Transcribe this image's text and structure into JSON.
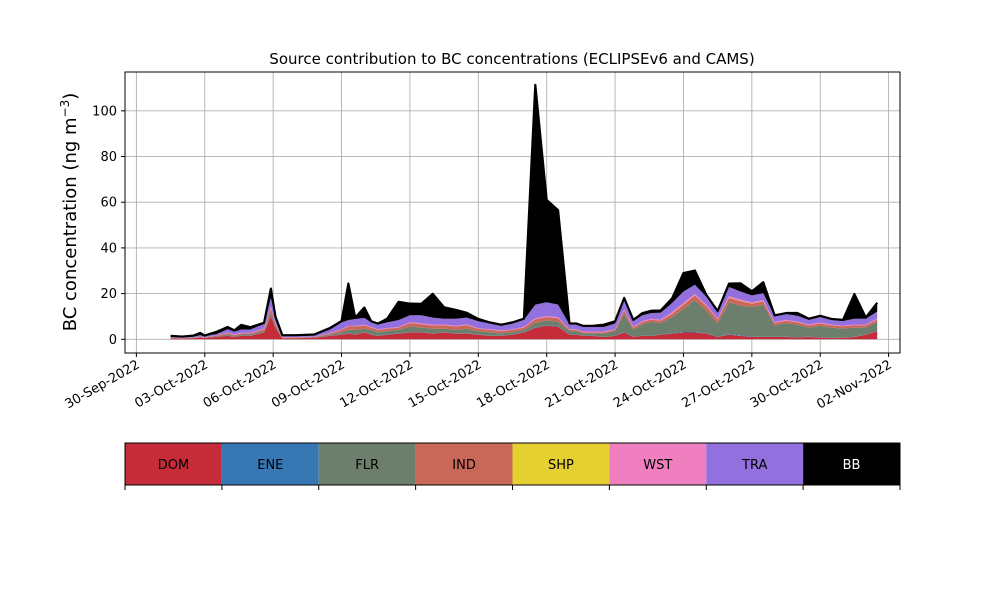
{
  "chart_data": {
    "type": "area",
    "stacked": true,
    "title": "Source contribution to BC concentrations (ECLIPSEv6 and CAMS)",
    "xlabel": "",
    "ylabel": "BC concentration (ng m",
    "ylabel_superscript": "−3",
    "ylabel_suffix": ")",
    "grid": true,
    "xlim_days": [
      -0.5,
      33.5
    ],
    "ylim": [
      -6,
      117
    ],
    "yticks": [
      0,
      20,
      40,
      60,
      80,
      100
    ],
    "xticks": [
      {
        "day": 0,
        "label": "30-Sep-2022"
      },
      {
        "day": 3,
        "label": "03-Oct-2022"
      },
      {
        "day": 6,
        "label": "06-Oct-2022"
      },
      {
        "day": 9,
        "label": "09-Oct-2022"
      },
      {
        "day": 12,
        "label": "12-Oct-2022"
      },
      {
        "day": 15,
        "label": "15-Oct-2022"
      },
      {
        "day": 18,
        "label": "18-Oct-2022"
      },
      {
        "day": 21,
        "label": "21-Oct-2022"
      },
      {
        "day": 24,
        "label": "24-Oct-2022"
      },
      {
        "day": 27,
        "label": "27-Oct-2022"
      },
      {
        "day": 30,
        "label": "30-Oct-2022"
      },
      {
        "day": 33,
        "label": "02-Nov-2022"
      }
    ],
    "x_days": [
      1.5,
      2.0,
      2.5,
      2.8,
      3.0,
      3.2,
      3.5,
      4.0,
      4.3,
      4.6,
      5.0,
      5.6,
      5.9,
      6.1,
      6.4,
      7.0,
      7.8,
      8.5,
      9.0,
      9.3,
      9.6,
      10.0,
      10.3,
      10.6,
      11.0,
      11.5,
      12.0,
      12.5,
      13.0,
      13.5,
      14.0,
      14.5,
      15.0,
      15.5,
      16.0,
      16.5,
      17.0,
      17.5,
      18.0,
      18.5,
      19.0,
      19.3,
      19.6,
      20.0,
      20.5,
      21.0,
      21.4,
      21.8,
      22.2,
      22.6,
      23.0,
      23.5,
      24.0,
      24.5,
      25.0,
      25.5,
      26.0,
      26.5,
      27.0,
      27.5,
      28.0,
      28.5,
      29.0,
      29.5,
      30.0,
      30.5,
      31.0,
      31.5,
      32.0,
      32.5
    ],
    "series": [
      {
        "name": "DOM",
        "color": "#c62b3a",
        "values": [
          0.4,
          0.3,
          0.5,
          0.8,
          0.6,
          0.8,
          1.0,
          1.5,
          1.0,
          1.5,
          1.5,
          3.0,
          10.0,
          5.0,
          0.5,
          0.5,
          0.6,
          1.5,
          2.0,
          2.5,
          2.0,
          3.0,
          2.0,
          1.5,
          2.0,
          2.5,
          3.0,
          3.0,
          2.5,
          3.0,
          2.5,
          2.5,
          2.0,
          1.5,
          1.5,
          2.0,
          3.0,
          5.0,
          6.0,
          5.5,
          2.0,
          2.0,
          1.5,
          1.5,
          1.0,
          1.5,
          3.0,
          1.0,
          1.5,
          1.5,
          2.0,
          2.5,
          3.0,
          3.0,
          2.5,
          1.0,
          2.0,
          1.5,
          1.0,
          1.0,
          1.0,
          1.0,
          0.8,
          1.0,
          0.8,
          0.5,
          0.6,
          1.0,
          2.0,
          3.5
        ]
      },
      {
        "name": "ENE",
        "color": "#3677b4",
        "values": [
          0,
          0,
          0,
          0,
          0,
          0,
          0,
          0.1,
          0.1,
          0.1,
          0.1,
          0.1,
          0.1,
          0.1,
          0,
          0,
          0,
          0.1,
          0.1,
          0.1,
          0.1,
          0.1,
          0.1,
          0.1,
          0.1,
          0.1,
          0.1,
          0.1,
          0.1,
          0.1,
          0.1,
          0.1,
          0.1,
          0.1,
          0.1,
          0.1,
          0.1,
          0.2,
          0.2,
          0.2,
          0.1,
          0.1,
          0.1,
          0.1,
          0.1,
          0.1,
          0.1,
          0.1,
          0.1,
          0.1,
          0.1,
          0.2,
          0.2,
          0.2,
          0.1,
          0.1,
          0.2,
          0.2,
          0.1,
          0.1,
          0.1,
          0.1,
          0.1,
          0.1,
          0.1,
          0.1,
          0.1,
          0.1,
          0.1,
          0.1
        ]
      },
      {
        "name": "FLR",
        "color": "#6c7f6d",
        "values": [
          0.1,
          0.1,
          0.1,
          0.2,
          0.1,
          0.2,
          0.3,
          0.5,
          0.4,
          0.5,
          0.5,
          0.6,
          1.5,
          0.8,
          0.2,
          0.2,
          0.2,
          0.5,
          1.0,
          1.5,
          2.0,
          1.5,
          2.0,
          1.5,
          1.5,
          1.5,
          2.5,
          2.0,
          2.0,
          1.5,
          1.5,
          2.0,
          1.5,
          1.5,
          1.0,
          1.0,
          1.0,
          2.0,
          2.0,
          2.0,
          1.5,
          1.5,
          1.0,
          1.0,
          1.5,
          2.0,
          8.0,
          3.0,
          5.0,
          6.0,
          5.0,
          7.0,
          10.0,
          14.0,
          10.0,
          6.0,
          14.0,
          13.0,
          13.0,
          14.0,
          5.0,
          6.0,
          5.5,
          4.0,
          5.0,
          4.5,
          4.0,
          4.0,
          3.0,
          4.0
        ]
      },
      {
        "name": "IND",
        "color": "#c96758",
        "values": [
          0.1,
          0.1,
          0.1,
          0.2,
          0.1,
          0.2,
          0.3,
          0.6,
          0.4,
          0.5,
          0.5,
          0.7,
          2.0,
          0.8,
          0.2,
          0.2,
          0.2,
          0.5,
          1.0,
          1.5,
          1.5,
          1.5,
          1.0,
          1.0,
          1.0,
          1.0,
          1.5,
          1.5,
          1.5,
          1.5,
          1.5,
          1.5,
          1.0,
          1.0,
          1.0,
          1.0,
          1.0,
          1.5,
          1.5,
          1.5,
          0.5,
          0.5,
          0.5,
          0.5,
          0.5,
          0.5,
          1.5,
          1.0,
          1.0,
          1.0,
          1.0,
          1.5,
          2.0,
          2.0,
          2.0,
          1.5,
          2.0,
          2.0,
          1.5,
          1.5,
          1.0,
          1.0,
          1.0,
          1.0,
          1.0,
          1.0,
          1.0,
          1.0,
          1.0,
          1.0
        ]
      },
      {
        "name": "SHP",
        "color": "#e5d031",
        "values": [
          0,
          0,
          0,
          0,
          0,
          0,
          0,
          0,
          0,
          0,
          0,
          0,
          0,
          0,
          0,
          0,
          0,
          0,
          0,
          0,
          0,
          0,
          0,
          0,
          0,
          0,
          0,
          0,
          0,
          0,
          0,
          0,
          0,
          0,
          0,
          0,
          0,
          0,
          0,
          0,
          0,
          0,
          0,
          0,
          0,
          0,
          0,
          0,
          0,
          0,
          0,
          0.1,
          0.1,
          0.1,
          0,
          0,
          0.1,
          0.1,
          0.1,
          0.1,
          0,
          0,
          0,
          0,
          0,
          0,
          0,
          0,
          0,
          0
        ]
      },
      {
        "name": "WST",
        "color": "#f07fbf",
        "values": [
          0.1,
          0.1,
          0.1,
          0.1,
          0.1,
          0.1,
          0.1,
          0.2,
          0.2,
          0.2,
          0.2,
          0.3,
          0.6,
          0.3,
          0.1,
          0.1,
          0.1,
          0.2,
          0.3,
          0.3,
          0.3,
          0.3,
          0.3,
          0.3,
          0.3,
          0.3,
          0.4,
          0.4,
          0.4,
          0.4,
          0.4,
          0.4,
          0.3,
          0.3,
          0.3,
          0.3,
          0.4,
          0.5,
          0.5,
          0.5,
          0.3,
          0.3,
          0.3,
          0.3,
          0.3,
          0.3,
          0.5,
          0.4,
          0.4,
          0.4,
          0.5,
          0.6,
          0.6,
          0.6,
          0.6,
          0.5,
          0.6,
          0.6,
          0.5,
          0.5,
          0.4,
          0.4,
          0.4,
          0.4,
          0.4,
          0.3,
          0.3,
          0.4,
          0.4,
          0.5
        ]
      },
      {
        "name": "TRA",
        "color": "#9270dd",
        "values": [
          0.3,
          0.3,
          0.3,
          0.5,
          0.4,
          0.5,
          0.5,
          1.5,
          1.2,
          1.5,
          1.5,
          2.0,
          4.0,
          2.5,
          0.5,
          0.5,
          0.5,
          1.5,
          3.0,
          2.5,
          3.0,
          3.0,
          2.0,
          2.0,
          2.5,
          3.0,
          3.0,
          3.5,
          3.0,
          2.5,
          3.0,
          3.0,
          3.0,
          2.5,
          2.0,
          2.5,
          3.0,
          6.0,
          6.0,
          5.5,
          2.0,
          2.0,
          2.0,
          2.0,
          2.0,
          2.5,
          4.0,
          2.5,
          2.5,
          2.5,
          3.0,
          4.0,
          5.0,
          4.0,
          3.5,
          2.5,
          4.0,
          3.5,
          3.0,
          3.0,
          2.5,
          2.5,
          2.5,
          2.0,
          2.5,
          2.0,
          2.0,
          2.5,
          2.5,
          3.0
        ]
      },
      {
        "name": "BB",
        "color": "#000000",
        "values": [
          0.5,
          0.3,
          0.5,
          1.0,
          0.3,
          0.5,
          1.0,
          1.0,
          0.6,
          2.0,
          1.0,
          0.5,
          4.0,
          0.5,
          0.3,
          0.3,
          0.5,
          0.7,
          0.6,
          16.0,
          0.6,
          4.5,
          0.5,
          0.5,
          1.6,
          8.0,
          5.1,
          5.0,
          10.4,
          5.0,
          3.9,
          2.1,
          1.0,
          0.5,
          0.5,
          0.5,
          0.5,
          96.2,
          44.8,
          41.3,
          0.6,
          0.5,
          0.5,
          0.5,
          1.0,
          1.0,
          1.0,
          0.5,
          1.0,
          1.0,
          1.0,
          2.0,
          8.1,
          6.2,
          0.8,
          0.8,
          1.5,
          3.6,
          1.8,
          4.8,
          0.5,
          0.5,
          1.2,
          0.5,
          0.5,
          0.5,
          0.5,
          10.8,
          0.5,
          3.9
        ]
      }
    ],
    "legend": {
      "placement": "below",
      "entries": [
        {
          "label": "DOM",
          "color": "#c62b3a",
          "text_color": "#000000"
        },
        {
          "label": "ENE",
          "color": "#3677b4",
          "text_color": "#000000"
        },
        {
          "label": "FLR",
          "color": "#6c7f6d",
          "text_color": "#000000"
        },
        {
          "label": "IND",
          "color": "#c96758",
          "text_color": "#000000"
        },
        {
          "label": "SHP",
          "color": "#e5d031",
          "text_color": "#000000"
        },
        {
          "label": "WST",
          "color": "#f07fbf",
          "text_color": "#000000"
        },
        {
          "label": "TRA",
          "color": "#9270dd",
          "text_color": "#000000"
        },
        {
          "label": "BB",
          "color": "#000000",
          "text_color": "#ffffff"
        }
      ]
    }
  }
}
